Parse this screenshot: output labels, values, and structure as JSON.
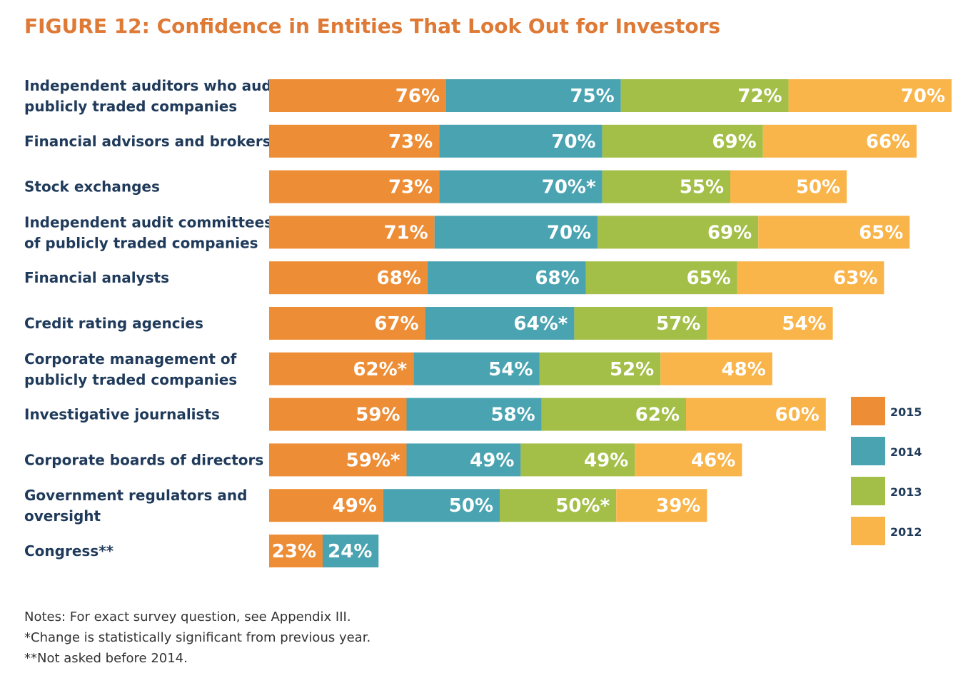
{
  "title": "FIGURE 12: Confidence in Entities That Look Out for Investors",
  "colors": {
    "2015": "#ed8d36",
    "2014": "#4aa3b1",
    "2013": "#a3bf48",
    "2012": "#f9b44a",
    "title": "#de7a35"
  },
  "chart_data": {
    "type": "bar",
    "orientation": "horizontal",
    "stacked": true,
    "legend": {
      "position": "right",
      "entries": [
        "2015",
        "2014",
        "2013",
        "2012"
      ]
    },
    "categories": [
      [
        "Independent auditors who audit",
        "publicly traded companies"
      ],
      [
        "Financial advisors and brokers"
      ],
      [
        "Stock exchanges"
      ],
      [
        "Independent audit committees",
        "of publicly traded companies"
      ],
      [
        "Financial analysts"
      ],
      [
        "Credit rating agencies"
      ],
      [
        "Corporate management of",
        "publicly traded companies"
      ],
      [
        "Investigative journalists"
      ],
      [
        "Corporate boards of directors"
      ],
      [
        "Government regulators and",
        "oversight"
      ],
      [
        "Congress**"
      ]
    ],
    "series": [
      {
        "name": "2015",
        "values": [
          76,
          73,
          73,
          71,
          68,
          67,
          62,
          59,
          59,
          49,
          23
        ],
        "labels": [
          "76%",
          "73%",
          "73%",
          "71%",
          "68%",
          "67%",
          "62%*",
          "59%",
          "59%*",
          "49%",
          "23%"
        ]
      },
      {
        "name": "2014",
        "values": [
          75,
          70,
          70,
          70,
          68,
          64,
          54,
          58,
          49,
          50,
          24
        ],
        "labels": [
          "75%",
          "70%",
          "70%*",
          "70%",
          "68%",
          "64%*",
          "54%",
          "58%",
          "49%",
          "50%",
          "24%"
        ]
      },
      {
        "name": "2013",
        "values": [
          72,
          69,
          55,
          69,
          65,
          57,
          52,
          62,
          49,
          50,
          null
        ],
        "labels": [
          "72%",
          "69%",
          "55%",
          "69%",
          "65%",
          "57%",
          "52%",
          "62%",
          "49%",
          "50%*",
          ""
        ]
      },
      {
        "name": "2012",
        "values": [
          70,
          66,
          50,
          65,
          63,
          54,
          48,
          60,
          46,
          39,
          null
        ],
        "labels": [
          "70%",
          "66%",
          "50%",
          "65%",
          "63%",
          "54%",
          "48%",
          "60%",
          "46%",
          "39%",
          ""
        ]
      }
    ]
  },
  "notes": [
    "Notes: For exact survey question, see Appendix III.",
    "*Change is statistically significant from previous year.",
    "**Not asked before 2014."
  ]
}
